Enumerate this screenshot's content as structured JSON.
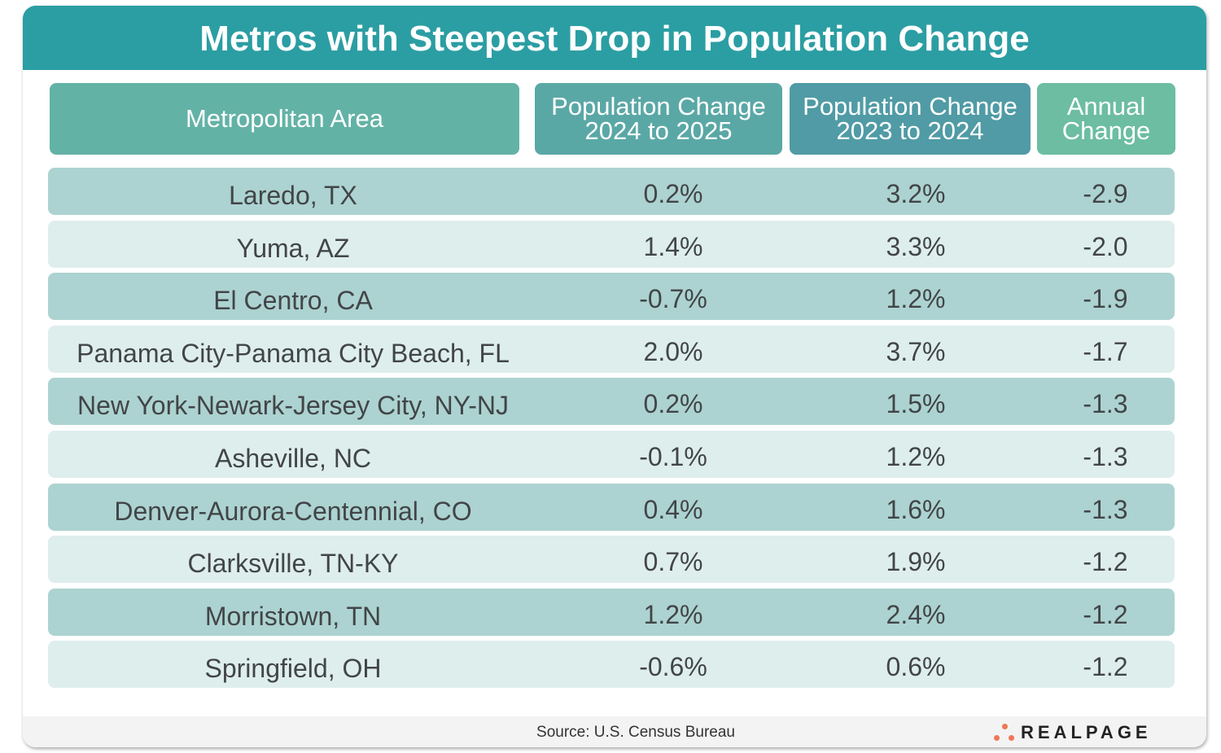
{
  "title": "Metros with Steepest Drop in Population Change",
  "chart_data": {
    "type": "table",
    "title": "Metros with Steepest Drop in Population Change",
    "columns": [
      "Metropolitan Area",
      "Population Change 2024 to 2025",
      "Population Change 2023 to 2024",
      "Annual Change"
    ],
    "rows": [
      [
        "Laredo, TX",
        "0.2%",
        "3.2%",
        "-2.9"
      ],
      [
        "Yuma, AZ",
        "1.4%",
        "3.3%",
        "-2.0"
      ],
      [
        "El Centro, CA",
        "-0.7%",
        "1.2%",
        "-1.9"
      ],
      [
        "Panama City-Panama City Beach, FL",
        "2.0%",
        "3.7%",
        "-1.7"
      ],
      [
        "New York-Newark-Jersey City, NY-NJ",
        "0.2%",
        "1.5%",
        "-1.3"
      ],
      [
        "Asheville, NC",
        "-0.1%",
        "1.2%",
        "-1.3"
      ],
      [
        "Denver-Aurora-Centennial, CO",
        "0.4%",
        "1.6%",
        "-1.3"
      ],
      [
        "Clarksville, TN-KY",
        "0.7%",
        "1.9%",
        "-1.2"
      ],
      [
        "Morristown, TN",
        "1.2%",
        "2.4%",
        "-1.2"
      ],
      [
        "Springfield, OH",
        "-0.6%",
        "0.6%",
        "-1.2"
      ]
    ]
  },
  "headers": {
    "h1": "Metropolitan Area",
    "h2a": "Population Change",
    "h2b": "2024 to 2025",
    "h3a": "Population Change",
    "h3b": "2023 to 2024",
    "h4a": "Annual",
    "h4b": "Change"
  },
  "footer": {
    "source": "Source: U.S. Census Bureau",
    "logo": "REALPAGE"
  },
  "colors": {
    "title_bar": "#2b9ea3",
    "row_dark": "#acd3d1",
    "row_light": "#deeeed",
    "logo_dots": "#ee7755"
  }
}
